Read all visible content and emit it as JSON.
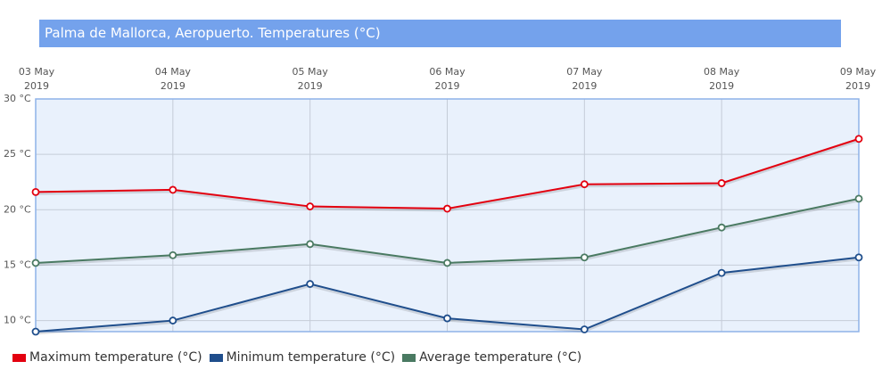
{
  "chart_data": {
    "type": "line",
    "title": "Palma de Mallorca, Aeropuerto. Temperatures (°C)",
    "categories": [
      "03 May 2019",
      "04 May 2019",
      "05 May 2019",
      "06 May 2019",
      "07 May 2019",
      "08 May 2019",
      "09 May 2019"
    ],
    "series": [
      {
        "name": "Maximum temperature (°C)",
        "color": "#e3000f",
        "values": [
          21.6,
          21.8,
          20.3,
          20.1,
          22.3,
          22.4,
          26.4
        ]
      },
      {
        "name": "Minimum temperature (°C)",
        "color": "#1f4e8c",
        "values": [
          9.0,
          10.0,
          13.3,
          10.2,
          9.2,
          14.3,
          15.7
        ]
      },
      {
        "name": "Average temperature (°C)",
        "color": "#4a7a62",
        "values": [
          15.2,
          15.9,
          16.9,
          15.2,
          15.7,
          18.4,
          21.0
        ]
      }
    ],
    "ylim": [
      9,
      30
    ],
    "yticks": [
      {
        "value": 10,
        "label": "10 °C"
      },
      {
        "value": 15,
        "label": "15 °C"
      },
      {
        "value": 20,
        "label": "20 °C"
      },
      {
        "value": 25,
        "label": "25 °C"
      },
      {
        "value": 30,
        "label": "30 °C"
      }
    ],
    "grid": true,
    "legend": "bottom"
  }
}
